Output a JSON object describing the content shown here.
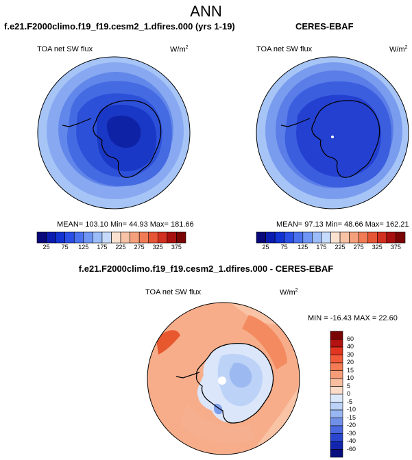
{
  "title": "ANN",
  "panels": [
    {
      "title": "f.e21.F2000climo.f19_f19.cesm2_1.dfires.000 (yrs 1-19)",
      "variable": "TOA net SW flux",
      "units": "W/m",
      "units_exp": "2",
      "stats": "MEAN= 103.10  Min=  44.93  Max= 181.66"
    },
    {
      "title": "CERES-EBAF",
      "variable": "TOA net SW flux",
      "units": "W/m",
      "units_exp": "2",
      "stats": "MEAN=  97.13  Min=  48.66  Max= 162.21"
    },
    {
      "title": "f.e21.F2000climo.f19_f19.cesm2_1.dfires.000 - CERES-EBAF",
      "variable": "TOA net SW flux",
      "units": "W/m",
      "units_exp": "2",
      "stats": "MIN = -16.43  MAX =  22.60"
    }
  ],
  "top_colorbar": {
    "colors": [
      "#08087a",
      "#0a1cb0",
      "#1232d2",
      "#2a4fe6",
      "#4a72ef",
      "#6f96f5",
      "#9bbcf8",
      "#c6dafb",
      "#fbe1d0",
      "#f8c2a6",
      "#f5a07c",
      "#f07b55",
      "#e65535",
      "#d23020",
      "#a81010",
      "#7a0505"
    ],
    "labels": [
      "25",
      "75",
      "125",
      "175",
      "225",
      "275",
      "325",
      "375"
    ]
  },
  "diff_colorbar": {
    "colors": [
      "#7a0505",
      "#b51212",
      "#e23420",
      "#f05a38",
      "#f47c55",
      "#f79c78",
      "#f9bd9f",
      "#fcdcc8",
      "#dbe8fb",
      "#bcd3f7",
      "#98b6f1",
      "#7090e8",
      "#4a68df",
      "#2a46cf",
      "#1225ae",
      "#070f7e"
    ],
    "labels": [
      "60",
      "40",
      "30",
      "20",
      "15",
      "10",
      "5",
      "0",
      "-5",
      "-10",
      "-15",
      "-20",
      "-30",
      "-40",
      "-60"
    ]
  }
}
